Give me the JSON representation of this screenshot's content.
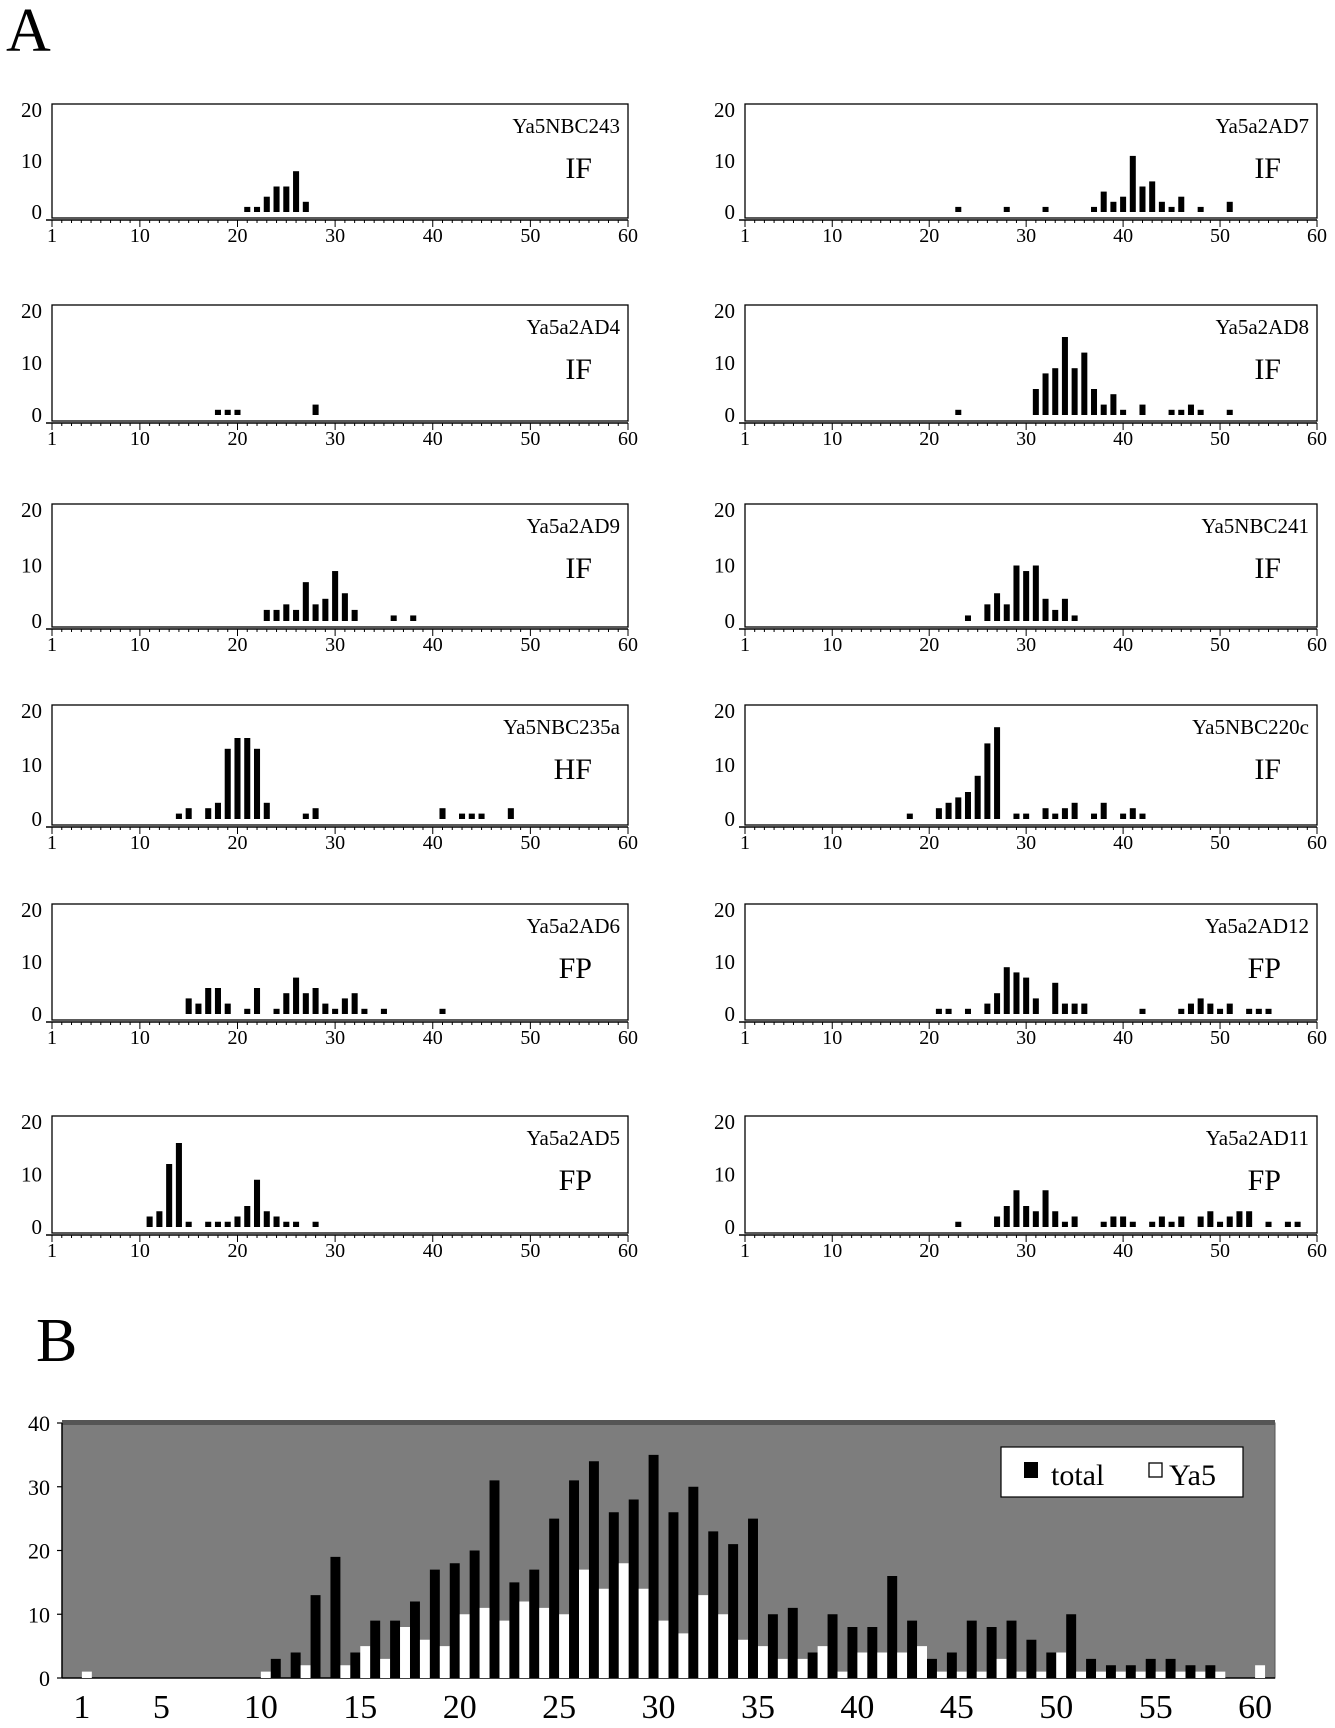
{
  "figure": {
    "panel_a_label": "A",
    "panel_b_label": "B"
  },
  "chart_data": [
    {
      "type": "bar",
      "panel": "A",
      "name": "Ya5NBC243",
      "class": "IF",
      "ylim": [
        0,
        20
      ],
      "yticks": [
        0,
        10,
        20
      ],
      "xlim": [
        1,
        60
      ],
      "xticks": [
        1,
        10,
        20,
        30,
        40,
        50,
        60
      ],
      "x": [
        21,
        22,
        23,
        24,
        25,
        26,
        27
      ],
      "values": [
        1,
        1,
        3,
        5,
        5,
        8,
        2
      ]
    },
    {
      "type": "bar",
      "panel": "A",
      "name": "Ya5a2AD7",
      "class": "IF",
      "ylim": [
        0,
        20
      ],
      "yticks": [
        0,
        10,
        20
      ],
      "xlim": [
        1,
        60
      ],
      "xticks": [
        1,
        10,
        20,
        30,
        40,
        50,
        60
      ],
      "x": [
        23,
        28,
        32,
        37,
        38,
        39,
        40,
        41,
        42,
        43,
        44,
        45,
        46,
        48,
        51
      ],
      "values": [
        1,
        1,
        1,
        1,
        4,
        2,
        3,
        11,
        5,
        6,
        2,
        1,
        3,
        1,
        2
      ]
    },
    {
      "type": "bar",
      "panel": "A",
      "name": "Ya5a2AD4",
      "class": "IF",
      "ylim": [
        0,
        20
      ],
      "yticks": [
        0,
        10,
        20
      ],
      "xlim": [
        1,
        60
      ],
      "xticks": [
        1,
        10,
        20,
        30,
        40,
        50,
        60
      ],
      "x": [
        18,
        19,
        20,
        28
      ],
      "values": [
        1,
        1,
        1,
        2
      ]
    },
    {
      "type": "bar",
      "panel": "A",
      "name": "Ya5a2AD8",
      "class": "IF",
      "ylim": [
        0,
        20
      ],
      "yticks": [
        0,
        10,
        20
      ],
      "xlim": [
        1,
        60
      ],
      "xticks": [
        1,
        10,
        20,
        30,
        40,
        50,
        60
      ],
      "x": [
        23,
        31,
        32,
        33,
        34,
        35,
        36,
        37,
        38,
        39,
        40,
        42,
        45,
        46,
        47,
        48,
        51
      ],
      "values": [
        1,
        5,
        8,
        9,
        15,
        9,
        12,
        5,
        2,
        4,
        1,
        2,
        1,
        1,
        2,
        1,
        1
      ]
    },
    {
      "type": "bar",
      "panel": "A",
      "name": "Ya5a2AD9",
      "class": "IF",
      "ylim": [
        0,
        20
      ],
      "yticks": [
        0,
        10,
        20
      ],
      "xlim": [
        1,
        60
      ],
      "xticks": [
        1,
        10,
        20,
        30,
        40,
        50,
        60
      ],
      "x": [
        23,
        24,
        25,
        26,
        27,
        28,
        29,
        30,
        31,
        32,
        36,
        38
      ],
      "values": [
        2,
        2,
        3,
        2,
        7,
        3,
        4,
        9,
        5,
        2,
        1,
        1
      ]
    },
    {
      "type": "bar",
      "panel": "A",
      "name": "Ya5NBC241",
      "class": "IF",
      "ylim": [
        0,
        20
      ],
      "yticks": [
        0,
        10,
        20
      ],
      "xlim": [
        1,
        60
      ],
      "xticks": [
        1,
        10,
        20,
        30,
        40,
        50,
        60
      ],
      "x": [
        24,
        26,
        27,
        28,
        29,
        30,
        31,
        32,
        33,
        34,
        35
      ],
      "values": [
        1,
        3,
        5,
        3,
        10,
        9,
        10,
        4,
        2,
        4,
        1
      ]
    },
    {
      "type": "bar",
      "panel": "A",
      "name": "Ya5NBC235a",
      "class": "HF",
      "ylim": [
        0,
        20
      ],
      "yticks": [
        0,
        10,
        20
      ],
      "xlim": [
        1,
        60
      ],
      "xticks": [
        1,
        10,
        20,
        30,
        40,
        50,
        60
      ],
      "x": [
        14,
        15,
        17,
        18,
        19,
        20,
        21,
        22,
        23,
        27,
        28,
        41,
        43,
        44,
        45,
        48
      ],
      "values": [
        1,
        2,
        2,
        3,
        13,
        15,
        15,
        13,
        3,
        1,
        2,
        2,
        1,
        1,
        1,
        2
      ]
    },
    {
      "type": "bar",
      "panel": "A",
      "name": "Ya5NBC220c",
      "class": "IF",
      "ylim": [
        0,
        20
      ],
      "yticks": [
        0,
        10,
        20
      ],
      "xlim": [
        1,
        60
      ],
      "xticks": [
        1,
        10,
        20,
        30,
        40,
        50,
        60
      ],
      "x": [
        18,
        21,
        22,
        23,
        24,
        25,
        26,
        27,
        29,
        30,
        32,
        33,
        34,
        35,
        37,
        38,
        40,
        41,
        42
      ],
      "values": [
        1,
        2,
        3,
        4,
        5,
        8,
        14,
        17,
        1,
        1,
        2,
        1,
        2,
        3,
        1,
        3,
        1,
        2,
        1
      ]
    },
    {
      "type": "bar",
      "panel": "A",
      "name": "Ya5a2AD6",
      "class": "FP",
      "ylim": [
        0,
        20
      ],
      "yticks": [
        0,
        10,
        20
      ],
      "xlim": [
        1,
        60
      ],
      "xticks": [
        1,
        10,
        20,
        30,
        40,
        50,
        60
      ],
      "x": [
        15,
        16,
        17,
        18,
        19,
        21,
        22,
        24,
        25,
        26,
        27,
        28,
        29,
        30,
        31,
        32,
        33,
        35,
        41
      ],
      "values": [
        3,
        2,
        5,
        5,
        2,
        1,
        5,
        1,
        4,
        7,
        4,
        5,
        2,
        1,
        3,
        4,
        1,
        1,
        1
      ]
    },
    {
      "type": "bar",
      "panel": "A",
      "name": "Ya5a2AD12",
      "class": "FP",
      "ylim": [
        0,
        20
      ],
      "yticks": [
        0,
        10,
        20
      ],
      "xlim": [
        1,
        60
      ],
      "xticks": [
        1,
        10,
        20,
        30,
        40,
        50,
        60
      ],
      "x": [
        21,
        22,
        24,
        26,
        27,
        28,
        29,
        30,
        31,
        33,
        34,
        35,
        36,
        42,
        46,
        47,
        48,
        49,
        50,
        51,
        53,
        54,
        55
      ],
      "values": [
        1,
        1,
        1,
        2,
        4,
        9,
        8,
        7,
        3,
        6,
        2,
        2,
        2,
        1,
        1,
        2,
        3,
        2,
        1,
        2,
        1,
        1,
        1
      ]
    },
    {
      "type": "bar",
      "panel": "A",
      "name": "Ya5a2AD5",
      "class": "FP",
      "ylim": [
        0,
        20
      ],
      "yticks": [
        0,
        10,
        20
      ],
      "xlim": [
        1,
        60
      ],
      "xticks": [
        1,
        10,
        20,
        30,
        40,
        50,
        60
      ],
      "x": [
        11,
        12,
        13,
        14,
        15,
        17,
        18,
        19,
        20,
        21,
        22,
        23,
        24,
        25,
        26,
        28
      ],
      "values": [
        2,
        3,
        12,
        16,
        1,
        1,
        1,
        1,
        2,
        4,
        9,
        3,
        2,
        1,
        1,
        1
      ]
    },
    {
      "type": "bar",
      "panel": "A",
      "name": "Ya5a2AD11",
      "class": "FP",
      "ylim": [
        0,
        20
      ],
      "yticks": [
        0,
        10,
        20
      ],
      "xlim": [
        1,
        60
      ],
      "xticks": [
        1,
        10,
        20,
        30,
        40,
        50,
        60
      ],
      "x": [
        23,
        27,
        28,
        29,
        30,
        31,
        32,
        33,
        34,
        35,
        38,
        39,
        40,
        41,
        43,
        44,
        45,
        46,
        48,
        49,
        50,
        51,
        52,
        53,
        55,
        57,
        58
      ],
      "values": [
        1,
        2,
        4,
        7,
        4,
        3,
        7,
        3,
        1,
        2,
        1,
        2,
        2,
        1,
        1,
        2,
        1,
        2,
        2,
        3,
        1,
        2,
        3,
        3,
        1,
        1,
        1
      ]
    },
    {
      "type": "bar",
      "panel": "B",
      "ylim": [
        0,
        40
      ],
      "yticks": [
        0,
        10,
        20,
        30,
        40
      ],
      "xlim": [
        1,
        60
      ],
      "xticks": [
        1,
        5,
        10,
        15,
        20,
        25,
        30,
        35,
        40,
        45,
        50,
        55,
        60
      ],
      "legend_position": "top-right",
      "background": "#7d7d7d",
      "x": [
        1,
        2,
        3,
        4,
        5,
        6,
        7,
        8,
        9,
        10,
        11,
        12,
        13,
        14,
        15,
        16,
        17,
        18,
        19,
        20,
        21,
        22,
        23,
        24,
        25,
        26,
        27,
        28,
        29,
        30,
        31,
        32,
        33,
        34,
        35,
        36,
        37,
        38,
        39,
        40,
        41,
        42,
        43,
        44,
        45,
        46,
        47,
        48,
        49,
        50,
        51,
        52,
        53,
        54,
        55,
        56,
        57,
        58,
        59,
        60
      ],
      "series": [
        {
          "name": "total",
          "color": "#000000",
          "values": [
            0,
            0,
            0,
            0,
            0,
            0,
            0,
            0,
            0,
            0,
            3,
            4,
            13,
            19,
            4,
            9,
            9,
            12,
            17,
            18,
            20,
            31,
            15,
            17,
            25,
            31,
            34,
            26,
            28,
            35,
            26,
            30,
            23,
            21,
            25,
            10,
            11,
            4,
            10,
            8,
            8,
            16,
            9,
            3,
            4,
            9,
            8,
            9,
            6,
            4,
            10,
            3,
            2,
            2,
            3,
            3,
            2,
            2,
            0,
            0
          ]
        },
        {
          "name": "Ya5",
          "color": "#ffffff",
          "values": [
            1,
            0,
            0,
            0,
            0,
            0,
            0,
            0,
            0,
            1,
            0,
            2,
            0,
            2,
            5,
            3,
            8,
            6,
            5,
            10,
            11,
            9,
            12,
            11,
            10,
            17,
            14,
            18,
            14,
            9,
            7,
            13,
            10,
            6,
            5,
            3,
            3,
            5,
            1,
            4,
            4,
            4,
            5,
            1,
            1,
            1,
            3,
            1,
            1,
            4,
            1,
            1,
            1,
            1,
            1,
            1,
            1,
            1,
            0,
            2
          ]
        }
      ]
    }
  ]
}
